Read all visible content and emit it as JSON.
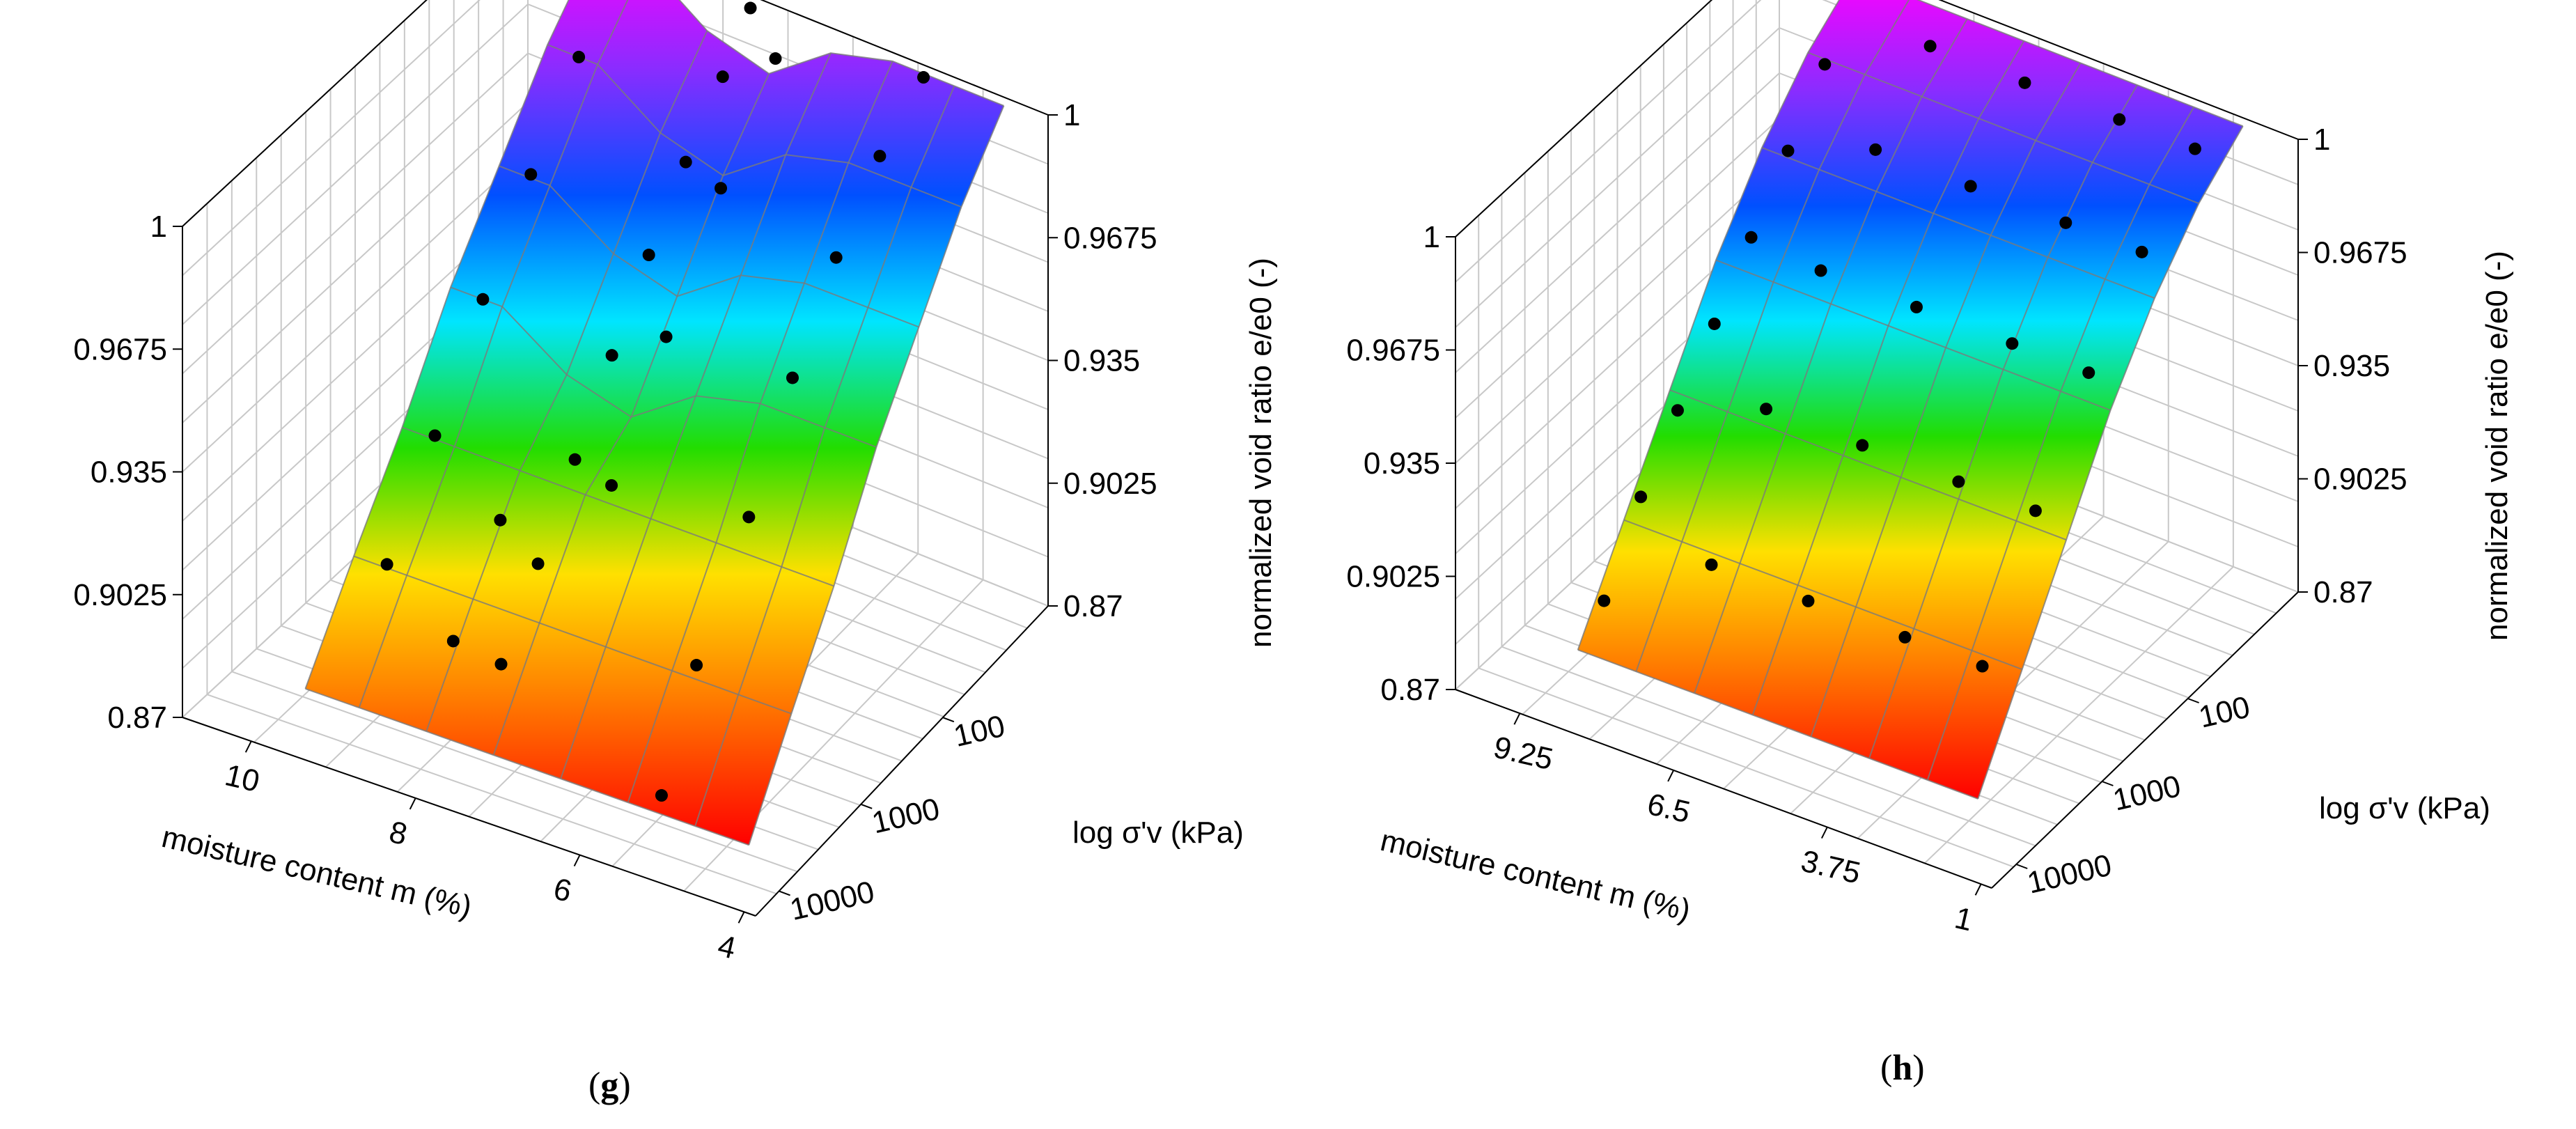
{
  "chart_data": [
    {
      "type": "surface3d",
      "panel_label": {
        "open": "(",
        "letter": "g",
        "close": ")"
      },
      "xlabel": "moisture content m (%)",
      "ylabel": "log σ'v (kPa)",
      "zlabel": "normalized void ratio e/e0 (-)",
      "x_ticks": [
        "10",
        "8",
        "6",
        "4"
      ],
      "y_ticks": [
        "100",
        "1000",
        "10000"
      ],
      "z_ticks_left": [
        "1",
        "0.9675",
        "0.935",
        "0.9025",
        "0.87"
      ],
      "z_ticks_right": [
        "1",
        "0.9675",
        "0.935",
        "0.9025",
        "0.87"
      ],
      "zlim": [
        0.87,
        1
      ],
      "x_range": [
        4,
        11
      ],
      "stress_levels_log10": [
        1,
        1.5,
        2,
        2.5,
        3,
        3.5,
        4
      ],
      "moisture_levels": [
        10.8,
        10,
        9,
        8,
        7,
        6,
        5,
        4.2
      ],
      "ridge_moisture": 8.3,
      "z_values_by_stress": [
        1.0,
        0.985,
        0.965,
        0.945,
        0.92,
        0.898,
        0.875
      ],
      "data_points": [
        {
          "m": 10.3,
          "s": 1.05,
          "e": 0.998
        },
        {
          "m": 10.3,
          "s": 1.5,
          "e": 0.985
        },
        {
          "m": 10.3,
          "s": 2.0,
          "e": 0.966
        },
        {
          "m": 10.3,
          "s": 2.5,
          "e": 0.945
        },
        {
          "m": 10.3,
          "s": 3.0,
          "e": 0.921
        },
        {
          "m": 10.3,
          "s": 3.5,
          "e": 0.899
        },
        {
          "m": 9.3,
          "s": 3.0,
          "e": 0.905
        },
        {
          "m": 9.3,
          "s": 3.5,
          "e": 0.885
        },
        {
          "m": 8.3,
          "s": 1.0,
          "e": 0.999
        },
        {
          "m": 8.3,
          "s": 1.3,
          "e": 0.988
        },
        {
          "m": 8.3,
          "s": 1.7,
          "e": 0.975
        },
        {
          "m": 8.3,
          "s": 2.1,
          "e": 0.96
        },
        {
          "m": 8.3,
          "s": 2.5,
          "e": 0.943
        },
        {
          "m": 8.3,
          "s": 2.9,
          "e": 0.925
        },
        {
          "m": 8.3,
          "s": 3.3,
          "e": 0.907
        },
        {
          "m": 8.3,
          "s": 3.7,
          "e": 0.89
        },
        {
          "m": 7.6,
          "s": 1.2,
          "e": 0.995
        },
        {
          "m": 7.6,
          "s": 1.8,
          "e": 0.975
        },
        {
          "m": 7.6,
          "s": 2.4,
          "e": 0.95
        },
        {
          "m": 7.6,
          "s": 3.0,
          "e": 0.925
        },
        {
          "m": 5.5,
          "s": 1.0,
          "e": 0.999
        },
        {
          "m": 5.5,
          "s": 1.5,
          "e": 0.99
        },
        {
          "m": 5.5,
          "s": 2.0,
          "e": 0.975
        },
        {
          "m": 5.5,
          "s": 2.5,
          "e": 0.955
        },
        {
          "m": 5.5,
          "s": 3.0,
          "e": 0.93
        },
        {
          "m": 5.5,
          "s": 3.6,
          "e": 0.905
        },
        {
          "m": 5.5,
          "s": 4.0,
          "e": 0.88
        }
      ]
    },
    {
      "type": "surface3d",
      "panel_label": {
        "open": "(",
        "letter": "h",
        "close": ")"
      },
      "xlabel": "moisture content m (%)",
      "ylabel": "log σ'v (kPa)",
      "zlabel": "normalized void ratio e/e0 (-)",
      "x_ticks": [
        "9.25",
        "6.5",
        "3.75",
        "1"
      ],
      "y_ticks": [
        "100",
        "1000",
        "10000"
      ],
      "z_ticks_left": [
        "1",
        "0.9675",
        "0.935",
        "0.9025",
        "0.87"
      ],
      "z_ticks_right": [
        "1",
        "0.9675",
        "0.935",
        "0.9025",
        "0.87"
      ],
      "zlim": [
        0.87,
        1
      ],
      "x_range": [
        1,
        12
      ],
      "stress_levels_log10": [
        1,
        1.5,
        2,
        2.5,
        3,
        3.5,
        4
      ],
      "moisture_levels": [
        11.5,
        10,
        8.5,
        7,
        5.5,
        4,
        2.5,
        1.2
      ],
      "z_values_by_stress": [
        1.0,
        0.99,
        0.975,
        0.955,
        0.93,
        0.905,
        0.88
      ],
      "data_points": [
        {
          "m": 11.3,
          "s": 1.0,
          "e": 0.998
        },
        {
          "m": 11.3,
          "s": 1.4,
          "e": 0.985
        },
        {
          "m": 11.3,
          "s": 1.8,
          "e": 0.97
        },
        {
          "m": 11.3,
          "s": 2.2,
          "e": 0.955
        },
        {
          "m": 11.3,
          "s": 2.6,
          "e": 0.94
        },
        {
          "m": 11.3,
          "s": 3.0,
          "e": 0.925
        },
        {
          "m": 11.3,
          "s": 3.4,
          "e": 0.91
        },
        {
          "m": 11.3,
          "s": 3.8,
          "e": 0.89
        },
        {
          "m": 9.0,
          "s": 1.2,
          "e": 0.995
        },
        {
          "m": 9.0,
          "s": 1.8,
          "e": 0.98
        },
        {
          "m": 9.0,
          "s": 2.4,
          "e": 0.96
        },
        {
          "m": 9.0,
          "s": 3.0,
          "e": 0.935
        },
        {
          "m": 9.0,
          "s": 3.6,
          "e": 0.905
        },
        {
          "m": 6.5,
          "s": 1.2,
          "e": 0.995
        },
        {
          "m": 6.5,
          "s": 1.8,
          "e": 0.98
        },
        {
          "m": 6.5,
          "s": 2.4,
          "e": 0.96
        },
        {
          "m": 6.5,
          "s": 3.0,
          "e": 0.935
        },
        {
          "m": 6.5,
          "s": 3.6,
          "e": 0.905
        },
        {
          "m": 4.0,
          "s": 1.2,
          "e": 0.995
        },
        {
          "m": 4.0,
          "s": 1.8,
          "e": 0.98
        },
        {
          "m": 4.0,
          "s": 2.4,
          "e": 0.96
        },
        {
          "m": 4.0,
          "s": 3.0,
          "e": 0.935
        },
        {
          "m": 4.0,
          "s": 3.6,
          "e": 0.905
        },
        {
          "m": 2.0,
          "s": 1.2,
          "e": 0.995
        },
        {
          "m": 2.0,
          "s": 1.8,
          "e": 0.98
        },
        {
          "m": 2.0,
          "s": 2.4,
          "e": 0.96
        },
        {
          "m": 2.0,
          "s": 3.0,
          "e": 0.935
        },
        {
          "m": 2.0,
          "s": 3.6,
          "e": 0.905
        }
      ]
    }
  ]
}
